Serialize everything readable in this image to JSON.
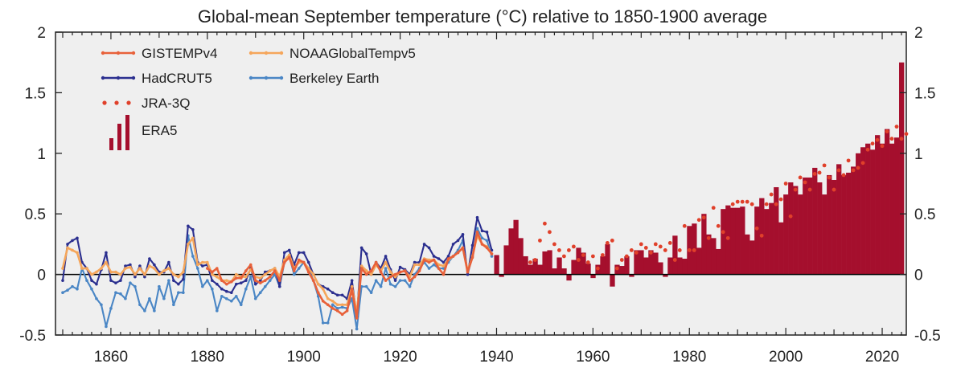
{
  "chart_data": {
    "type": "line",
    "title": "Global-mean September temperature (°C) relative to 1850-1900 average",
    "xlabel": "",
    "ylabel": "",
    "xlim": [
      1848.5,
      2025
    ],
    "ylim": [
      -0.5,
      2
    ],
    "grid": false,
    "legend_position": "top-left",
    "x_ticks": [
      "1860",
      "1880",
      "1900",
      "1920",
      "1940",
      "1960",
      "1980",
      "2000",
      "2020"
    ],
    "y_ticks": [
      "-0.5",
      "0",
      "0.5",
      "1",
      "1.5",
      "2"
    ],
    "x_start": 1850,
    "colors": {
      "background": "#efefef",
      "gistemp": "#e8613a",
      "noaa": "#f5a65b",
      "hadcrut": "#2b2f8f",
      "berkeley": "#4a86c5",
      "jra": "#e0402a",
      "era5": "#a50f2d"
    },
    "legend": {
      "gistemp": "GISTEMPv4",
      "noaa": "NOAAGlobalTempv5",
      "hadcrut": "HadCRUT5",
      "berkeley": "Berkeley Earth",
      "jra": "JRA-3Q",
      "era5": "ERA5"
    },
    "series": [
      {
        "name": "HadCRUT5",
        "start": 1850,
        "values": [
          -0.05,
          0.25,
          0.28,
          0.3,
          0.1,
          0.05,
          -0.05,
          -0.08,
          0.04,
          0.18,
          -0.05,
          -0.07,
          -0.05,
          0.07,
          0.08,
          -0.02,
          0.07,
          -0.02,
          0.13,
          0.08,
          0.02,
          0.02,
          0.1,
          -0.05,
          -0.08,
          -0.04,
          0.4,
          0.37,
          0.1,
          0.07,
          0.08,
          -0.05,
          -0.08,
          -0.12,
          -0.14,
          -0.15,
          -0.08,
          -0.07,
          -0.05,
          0.05,
          -0.08,
          -0.05,
          0.02,
          0.03,
          0.05,
          -0.1,
          0.18,
          0.2,
          0.08,
          0.18,
          0.18,
          0.1,
          0.0,
          -0.08,
          -0.1,
          -0.12,
          -0.15,
          -0.17,
          -0.17,
          -0.2,
          -0.05,
          -0.35,
          0.22,
          0.17,
          0.0,
          0.1,
          0.05,
          0.15,
          0.04,
          -0.05,
          0.06,
          0.04,
          0.0,
          0.1,
          0.1,
          0.25,
          0.22,
          0.15,
          0.13,
          0.1,
          0.15,
          0.25,
          0.28,
          0.33,
          0.0,
          0.24,
          0.47,
          0.36,
          0.35,
          0.2
        ]
      },
      {
        "name": "GISTEMPv4",
        "start": 1880,
        "values": [
          0.05,
          0.02,
          0.05,
          -0.05,
          -0.08,
          -0.06,
          -0.03,
          -0.03,
          0.03,
          0.08,
          -0.05,
          -0.07,
          -0.05,
          -0.02,
          0.03,
          -0.05,
          0.1,
          0.14,
          0.03,
          0.12,
          0.1,
          0.02,
          -0.05,
          -0.15,
          -0.22,
          -0.25,
          -0.28,
          -0.3,
          -0.33,
          -0.3,
          -0.12,
          -0.36,
          0.05,
          0.0,
          0.03,
          0.1,
          0.02,
          -0.05,
          -0.02,
          0.0,
          0.02,
          0.03,
          -0.05,
          -0.02,
          0.03,
          0.12,
          0.1,
          0.12,
          0.05,
          0.0,
          0.13,
          0.15,
          0.18,
          0.22,
          0.02,
          0.14,
          0.35,
          0.25,
          0.22,
          0.17
        ]
      },
      {
        "name": "NOAAGlobalTempv5",
        "start": 1850,
        "values": [
          0.05,
          0.22,
          0.2,
          0.18,
          0.05,
          0.05,
          0.0,
          0.02,
          0.05,
          0.1,
          0.02,
          0.02,
          0.0,
          0.05,
          0.06,
          0.0,
          0.05,
          0.0,
          0.07,
          0.05,
          0.0,
          0.03,
          0.05,
          0.0,
          -0.02,
          0.02,
          0.25,
          0.3,
          0.08,
          0.1,
          0.1,
          0.0,
          -0.02,
          -0.05,
          -0.05,
          -0.06,
          0.0,
          -0.02,
          -0.02,
          0.04,
          -0.02,
          -0.03,
          0.0,
          0.03,
          0.05,
          -0.02,
          0.12,
          0.16,
          0.05,
          0.1,
          0.1,
          0.05,
          0.0,
          -0.08,
          -0.12,
          -0.2,
          -0.22,
          -0.25,
          -0.25,
          -0.25,
          -0.1,
          -0.32,
          0.07,
          0.03,
          0.0,
          0.08,
          0.03,
          0.1,
          0.02,
          -0.02,
          0.02,
          0.03,
          -0.02,
          0.08,
          0.08,
          0.13,
          0.12,
          0.12,
          0.08,
          0.07,
          0.12,
          0.15,
          0.18,
          0.22,
          0.03,
          0.15,
          0.32,
          0.25,
          0.23,
          0.17
        ]
      },
      {
        "name": "Berkeley Earth",
        "start": 1850,
        "values": [
          -0.15,
          -0.13,
          -0.1,
          -0.12,
          0.05,
          -0.05,
          -0.12,
          -0.2,
          -0.25,
          -0.43,
          -0.28,
          -0.15,
          -0.16,
          -0.2,
          -0.07,
          -0.1,
          -0.25,
          -0.3,
          -0.2,
          -0.3,
          -0.1,
          -0.2,
          -0.05,
          -0.25,
          -0.15,
          -0.15,
          0.32,
          0.15,
          0.05,
          -0.1,
          -0.05,
          -0.12,
          -0.3,
          -0.18,
          -0.2,
          -0.22,
          -0.18,
          -0.25,
          -0.12,
          -0.02,
          -0.2,
          -0.15,
          -0.1,
          -0.05,
          0.0,
          -0.1,
          0.1,
          0.15,
          0.0,
          0.05,
          0.1,
          0.05,
          -0.05,
          -0.18,
          -0.4,
          -0.4,
          -0.25,
          -0.28,
          -0.27,
          -0.28,
          -0.2,
          -0.45,
          -0.1,
          -0.1,
          -0.15,
          -0.05,
          -0.1,
          0.05,
          -0.08,
          -0.1,
          -0.05,
          -0.05,
          -0.1,
          0.0,
          0.05,
          0.1,
          0.05,
          0.08,
          0.05,
          0.05,
          0.1,
          0.15,
          0.2,
          0.28,
          0.0,
          0.15,
          0.38,
          0.3,
          0.28,
          0.15
        ]
      },
      {
        "name": "ERA5",
        "start": 1940,
        "values": [
          0.16,
          -0.02,
          0.24,
          0.38,
          0.45,
          0.3,
          0.15,
          0.08,
          0.13,
          0.08,
          0.19,
          0.2,
          0.05,
          0.14,
          0.05,
          -0.05,
          0.12,
          0.22,
          0.18,
          0.09,
          -0.03,
          0.08,
          0.15,
          0.25,
          -0.1,
          0.08,
          0.07,
          0.15,
          -0.02,
          0.2,
          0.2,
          0.14,
          0.2,
          0.18,
          0.1,
          -0.02,
          0.14,
          0.32,
          0.14,
          0.13,
          0.4,
          0.42,
          0.22,
          0.5,
          0.33,
          0.3,
          0.21,
          0.54,
          0.57,
          0.55,
          0.55,
          0.56,
          0.33,
          0.28,
          0.56,
          0.63,
          0.54,
          0.59,
          0.72,
          0.43,
          0.66,
          0.76,
          0.73,
          0.66,
          0.8,
          0.8,
          0.88,
          0.76,
          0.66,
          0.82,
          0.78,
          0.91,
          0.82,
          0.84,
          0.89,
          1.0,
          1.05,
          1.08,
          1.03,
          1.15,
          1.08,
          1.2,
          1.08,
          1.13,
          1.75
        ]
      },
      {
        "name": "JRA-3Q",
        "start": 1947,
        "values": [
          0.1,
          0.12,
          0.28,
          0.42,
          0.35,
          0.25,
          0.2,
          0.15,
          0.2,
          0.23,
          0.12,
          0.16,
          0.1,
          0.15,
          0.05,
          0.16,
          0.26,
          0.28,
          0.05,
          0.12,
          0.15,
          0.2,
          0.18,
          0.25,
          0.22,
          0.18,
          0.25,
          0.23,
          0.2,
          0.26,
          0.12,
          0.2,
          0.4,
          0.2,
          0.2,
          0.45,
          0.47,
          0.3,
          0.55,
          0.4,
          0.35,
          0.3,
          0.58,
          0.6,
          0.6,
          0.6,
          0.58,
          0.38,
          0.32,
          0.58,
          0.66,
          0.58,
          0.62,
          0.75,
          0.48,
          0.7,
          0.8,
          0.76,
          0.7,
          0.83,
          0.84,
          0.9,
          0.8,
          0.7,
          0.86,
          0.82,
          0.94,
          0.86,
          0.88,
          0.92,
          1.03,
          1.08,
          1.11,
          1.06,
          1.18,
          1.12,
          1.22,
          1.12,
          1.16
        ]
      }
    ]
  }
}
